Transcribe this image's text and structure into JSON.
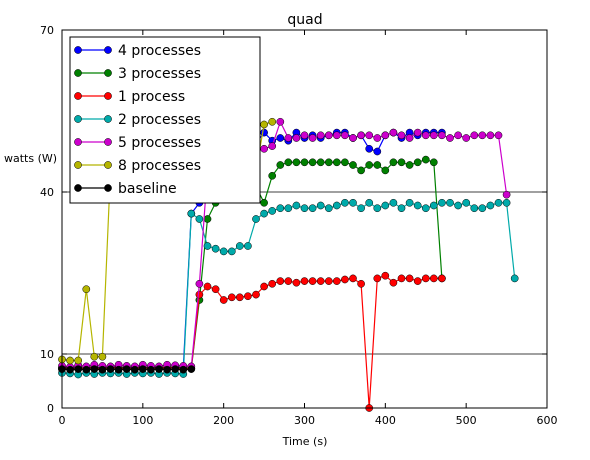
{
  "chart_data": {
    "type": "line",
    "title": "quad",
    "xlabel": "Time (s)",
    "ylabel": "watts (W)",
    "xlim": [
      0,
      600
    ],
    "ylim": [
      0,
      70
    ],
    "xticks": [
      0,
      100,
      200,
      300,
      400,
      500,
      600
    ],
    "yticks": [
      0,
      10,
      40,
      70
    ],
    "grid": "horizontal",
    "legend_position": "top-left",
    "series": [
      {
        "name": "4 processes",
        "color": "#0000ff",
        "x": [
          0,
          10,
          20,
          30,
          40,
          50,
          60,
          70,
          80,
          90,
          100,
          110,
          120,
          130,
          140,
          150,
          160,
          170,
          180,
          190,
          200,
          210,
          220,
          230,
          240,
          250,
          260,
          270,
          280,
          290,
          300,
          310,
          320,
          330,
          340,
          350,
          360,
          370,
          380,
          390,
          400,
          410,
          420,
          430,
          440,
          450,
          460,
          470
        ],
        "y": [
          7.5,
          7.3,
          7.6,
          7.2,
          7.6,
          7.4,
          7.5,
          7.6,
          7.4,
          7.5,
          7.6,
          7.4,
          7.5,
          7.4,
          7.6,
          7.5,
          36,
          38,
          42,
          46,
          48,
          48,
          49,
          49,
          49,
          51,
          49.5,
          50,
          49.5,
          51,
          50,
          50.5,
          50,
          50.5,
          51,
          51,
          50,
          50.5,
          48,
          47.5,
          50.5,
          51,
          50,
          51,
          50.5,
          51,
          51,
          51
        ]
      },
      {
        "name": "3 processes",
        "color": "#008000",
        "x": [
          0,
          10,
          20,
          30,
          40,
          50,
          60,
          70,
          80,
          90,
          100,
          110,
          120,
          130,
          140,
          150,
          160,
          170,
          180,
          190,
          200,
          210,
          220,
          230,
          240,
          250,
          260,
          270,
          280,
          290,
          300,
          310,
          320,
          330,
          340,
          350,
          360,
          370,
          380,
          390,
          400,
          410,
          420,
          430,
          440,
          450,
          460,
          470
        ],
        "y": [
          7.3,
          7.4,
          7.2,
          7.5,
          7.3,
          7.4,
          7.3,
          7.5,
          7.4,
          7.3,
          7.4,
          7.5,
          7.3,
          7.4,
          7.5,
          7.4,
          7.3,
          20,
          35,
          38,
          42,
          43,
          43,
          43,
          41,
          38,
          43,
          45,
          45.5,
          45.5,
          45.5,
          45.5,
          45.5,
          45.5,
          45.5,
          45.5,
          45,
          44,
          45,
          45,
          44,
          45.5,
          45.5,
          45,
          45.5,
          46,
          45.5,
          24
        ]
      },
      {
        "name": "1 process",
        "color": "#ff0000",
        "x": [
          0,
          10,
          20,
          30,
          40,
          50,
          60,
          70,
          80,
          90,
          100,
          110,
          120,
          130,
          140,
          150,
          160,
          170,
          180,
          190,
          200,
          210,
          220,
          230,
          240,
          250,
          260,
          270,
          280,
          290,
          300,
          310,
          320,
          330,
          340,
          350,
          360,
          370,
          380,
          390,
          400,
          410,
          420,
          430,
          440,
          450,
          460,
          470
        ],
        "y": [
          7.3,
          7.4,
          7.3,
          7.5,
          7.4,
          7.3,
          7.5,
          7.4,
          7.3,
          7.4,
          7.5,
          7.3,
          7.4,
          7.5,
          7.4,
          7.3,
          7.4,
          21,
          22.5,
          22,
          20,
          20.5,
          20.5,
          20.7,
          21,
          22.5,
          23,
          23.5,
          23.5,
          23.2,
          23.5,
          23.5,
          23.5,
          23.5,
          23.5,
          23.8,
          24,
          23,
          0,
          24,
          24.5,
          23.2,
          24,
          24,
          23.5,
          24,
          24,
          24
        ]
      },
      {
        "name": "2 processes",
        "color": "#00aaaa",
        "x": [
          0,
          10,
          20,
          30,
          40,
          50,
          60,
          70,
          80,
          90,
          100,
          110,
          120,
          130,
          140,
          150,
          160,
          170,
          180,
          190,
          200,
          210,
          220,
          230,
          240,
          250,
          260,
          270,
          280,
          290,
          300,
          310,
          320,
          330,
          340,
          350,
          360,
          370,
          380,
          390,
          400,
          410,
          420,
          430,
          440,
          450,
          460,
          470,
          480,
          490,
          500,
          510,
          520,
          530,
          540,
          550,
          560
        ],
        "y": [
          6.5,
          6.4,
          6.2,
          6.5,
          6.3,
          6.5,
          6.4,
          6.5,
          6.3,
          6.5,
          6.4,
          6.5,
          6.3,
          6.5,
          6.4,
          6.3,
          36,
          35,
          30,
          29.5,
          29,
          29,
          30,
          30,
          35,
          36,
          36.5,
          37,
          37,
          37.5,
          37,
          37,
          37.5,
          37,
          37.5,
          38,
          38,
          37,
          38,
          37,
          37.5,
          38,
          37,
          38,
          37.5,
          37,
          37.5,
          38,
          38,
          37.5,
          38,
          37,
          37,
          37.5,
          38,
          38,
          24
        ]
      },
      {
        "name": "5 processes",
        "color": "#cc00cc",
        "x": [
          0,
          10,
          20,
          30,
          40,
          50,
          60,
          70,
          80,
          90,
          100,
          110,
          120,
          130,
          140,
          150,
          160,
          170,
          180,
          190,
          200,
          210,
          220,
          230,
          240,
          250,
          260,
          270,
          280,
          290,
          300,
          310,
          320,
          330,
          340,
          350,
          360,
          370,
          380,
          390,
          400,
          410,
          420,
          430,
          440,
          450,
          460,
          470,
          480,
          490,
          500,
          510,
          520,
          530,
          540,
          550
        ],
        "y": [
          7.8,
          7.6,
          7.9,
          7.7,
          8.0,
          7.8,
          7.7,
          8.0,
          7.8,
          7.7,
          8.0,
          7.8,
          7.7,
          8.0,
          7.9,
          7.8,
          7.7,
          23,
          44,
          47,
          48,
          48,
          48,
          49,
          48,
          48,
          48.5,
          53,
          50,
          50,
          50.5,
          50,
          50.5,
          50.5,
          50.5,
          50.5,
          50,
          50.5,
          50.5,
          50,
          50.5,
          51,
          50.5,
          50,
          51,
          50.5,
          50.5,
          50.5,
          50,
          50.5,
          50,
          50.5,
          50.5,
          50.5,
          50.5,
          39.5
        ]
      },
      {
        "name": "8 processes",
        "color": "#b5b500",
        "x": [
          0,
          10,
          20,
          30,
          40,
          50,
          60,
          70,
          80,
          90,
          100,
          110,
          120,
          130,
          140,
          150,
          160,
          170,
          180,
          190,
          200,
          210,
          220,
          230,
          240,
          250,
          260
        ],
        "y": [
          9,
          8.8,
          8.8,
          22,
          9.5,
          9.5,
          44,
          44,
          44,
          44,
          44,
          44,
          44,
          44,
          44,
          44,
          44,
          44,
          44,
          44,
          44,
          44,
          44,
          44,
          44,
          52.5,
          53
        ]
      },
      {
        "name": "baseline",
        "color": "#000000",
        "x": [
          0,
          10,
          20,
          30,
          40,
          50,
          60,
          70,
          80,
          90,
          100,
          110,
          120,
          130,
          140,
          150,
          160
        ],
        "y": [
          7.2,
          7.1,
          7.2,
          7.1,
          7.2,
          7.1,
          7.2,
          7.1,
          7.2,
          7.1,
          7.2,
          7.1,
          7.2,
          7.1,
          7.2,
          7.1,
          7.2
        ]
      }
    ]
  }
}
